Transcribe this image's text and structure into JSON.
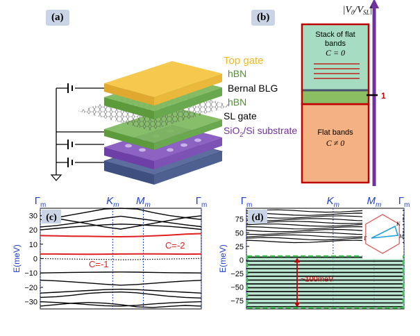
{
  "panel_a": {
    "tag": "(a)",
    "layers": {
      "top_gate": "Top gate",
      "hbn_upper": "hBN",
      "bernal_blg": "Bernal BLG",
      "hbn_lower": "hBN",
      "sl_gate": "SL gate",
      "substrate_sio2": "SiO",
      "substrate_sub": "2",
      "substrate_rest": "/Si substrate"
    },
    "colors": {
      "top_gate": "#f4c54b",
      "hbn": "#6aa84f",
      "substrate": "#7a47a8",
      "base": "#44546a"
    }
  },
  "panel_b": {
    "tag": "(b)",
    "axis_label": "|V",
    "axis_sub0": "0",
    "axis_mid": "/V",
    "axis_sub1": "SL",
    "axis_end": "|",
    "upper_line1": "Stack of flat",
    "upper_line2": "bands",
    "upper_line3": "C = 0",
    "lower_line1": "Flat bands",
    "lower_line2": "C ≠ 0",
    "marker": "1",
    "colors": {
      "upper": "#a6dcc1",
      "lower": "#f4b183",
      "border": "#c00000",
      "arrow": "#7030a0"
    }
  },
  "panel_c": {
    "tag": "(c)",
    "ylabel": "E(meV)",
    "kpoints": [
      "Γ",
      "K",
      "M",
      "Γ"
    ],
    "kpoint_sub": "m",
    "chern_labels": [
      "C=-2",
      "C=-1"
    ],
    "chart_data": {
      "type": "line",
      "ylim": [
        -35,
        35
      ],
      "yticks": [
        30,
        20,
        10,
        0,
        -10,
        -20,
        -30
      ],
      "ytick_labels": [
        "30",
        "20",
        "10",
        "0",
        "−10",
        "−20",
        "−30"
      ],
      "kpath": [
        "Γm",
        "Km",
        "Mm",
        "Γm"
      ],
      "kpos": [
        0,
        0.45,
        0.64,
        1.0
      ],
      "fermi_level": 0,
      "series": [
        {
          "name": "C=-2",
          "color": "#e02020",
          "values": [
            16,
            15.8,
            15.6,
            15.5,
            15.3,
            15.2,
            15.4,
            15.8,
            16.3,
            17,
            17.4
          ]
        },
        {
          "name": "C=-1",
          "color": "#e02020",
          "values": [
            3.2,
            3.2,
            3.1,
            3.0,
            3.1,
            3.2,
            3.3,
            3.3,
            3.2,
            3.1,
            3.2
          ]
        },
        {
          "color": "#000",
          "values": [
            20,
            21,
            22,
            22.8,
            23.5,
            24,
            23.6,
            23,
            22.4,
            21.5,
            20.3
          ]
        },
        {
          "color": "#000",
          "values": [
            22,
            23,
            24.5,
            26,
            28,
            29.5,
            28,
            26.5,
            25,
            23.5,
            22.2
          ]
        },
        {
          "color": "#000",
          "values": [
            30,
            28,
            26,
            24.2,
            22,
            20.5,
            22.5,
            24.5,
            26.5,
            28.5,
            29.8
          ]
        },
        {
          "color": "#000",
          "values": [
            27,
            28.5,
            30.5,
            32.5,
            34.5,
            35,
            34.5,
            32,
            30,
            28.5,
            27.2
          ]
        },
        {
          "color": "#000",
          "values": [
            -10,
            -9.8,
            -9.6,
            -9.5,
            -9.4,
            -9.3,
            -9.4,
            -9.6,
            -9.8,
            -9.9,
            -10
          ]
        },
        {
          "color": "#000",
          "values": [
            -15,
            -15.5,
            -16.2,
            -17,
            -17.8,
            -18.5,
            -18,
            -17.2,
            -16.3,
            -15.6,
            -15.1
          ]
        },
        {
          "color": "#000",
          "values": [
            -24,
            -23.4,
            -22.8,
            -22.2,
            -21.6,
            -21.3,
            -21.6,
            -22.2,
            -22.8,
            -23.4,
            -24
          ]
        },
        {
          "color": "#000",
          "values": [
            -27,
            -26.5,
            -25.5,
            -24.2,
            -23.5,
            -23.2,
            -23.8,
            -25,
            -26.2,
            -27,
            -27.4
          ]
        },
        {
          "color": "#000",
          "values": [
            -30,
            -30.5,
            -31.2,
            -32,
            -32.8,
            -33,
            -32.5,
            -31.5,
            -30.8,
            -30.3,
            -30
          ]
        },
        {
          "color": "#000",
          "values": [
            -33,
            -32,
            -31,
            -30.5,
            -31,
            -32,
            -33.5,
            -34,
            -33.2,
            -32.6,
            -33
          ]
        }
      ],
      "dotted_band": [
        0.1,
        -0.2,
        -0.3,
        -0.5,
        -0.6,
        -0.8,
        -0.7,
        -0.5,
        -0.3,
        -0.1,
        0.1
      ]
    }
  },
  "panel_d": {
    "tag": "(d)",
    "ylabel": "E(meV)",
    "kpoints": [
      "Γ",
      "K",
      "M",
      "Γ"
    ],
    "kpoint_sub": "m",
    "gap_label": "~100meV",
    "inset_labels": [
      "K",
      "M",
      "Γ"
    ],
    "chart_data": {
      "type": "line",
      "ylim": [
        -90,
        95
      ],
      "yticks": [
        75,
        50,
        25,
        0,
        -25,
        -50,
        -75
      ],
      "ytick_labels": [
        "75",
        "50",
        "25",
        "0",
        "−25",
        "−50",
        "−75"
      ],
      "kpath": [
        "Γm",
        "Km",
        "Mm",
        "Γm"
      ],
      "kpos": [
        0,
        0.55,
        0.81,
        1.0
      ],
      "upper_band_energies": [
        90,
        84,
        79,
        74,
        69,
        64,
        59,
        54,
        49,
        44,
        39,
        34
      ],
      "flat_band_energies": [
        5,
        -2,
        -9,
        -16,
        -23,
        -30,
        -37,
        -44,
        -51,
        -58,
        -65,
        -72,
        -79,
        -86
      ],
      "highlight_range": [
        -88,
        7
      ],
      "gap_arrow": [
        3,
        -86
      ]
    }
  }
}
